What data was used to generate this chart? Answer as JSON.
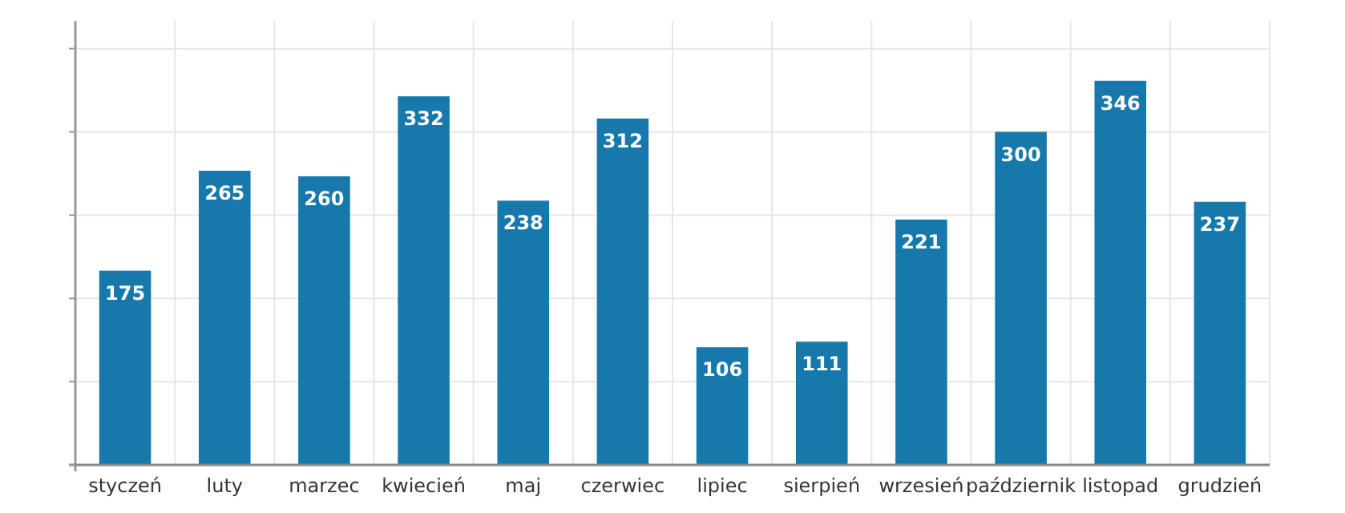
{
  "chart_data": {
    "type": "bar",
    "categories": [
      "styczeń",
      "luty",
      "marzec",
      "kwiecień",
      "maj",
      "czerwiec",
      "lipiec",
      "sierpień",
      "wrzesień",
      "październik",
      "listopad",
      "grudzień"
    ],
    "values": [
      175,
      265,
      260,
      332,
      238,
      312,
      106,
      111,
      221,
      300,
      346,
      237
    ],
    "color": "#1779ab",
    "data_labels": true,
    "ylim": [
      0,
      400
    ],
    "yticks": [
      {
        "value": 0,
        "label": null
      },
      {
        "value": 75,
        "label": null
      },
      {
        "value": 150,
        "label": null
      },
      {
        "value": 225,
        "label": null
      },
      {
        "value": 300,
        "label": null
      },
      {
        "value": 375,
        "label": null
      }
    ],
    "grid": true,
    "tick_labels": "x"
  }
}
